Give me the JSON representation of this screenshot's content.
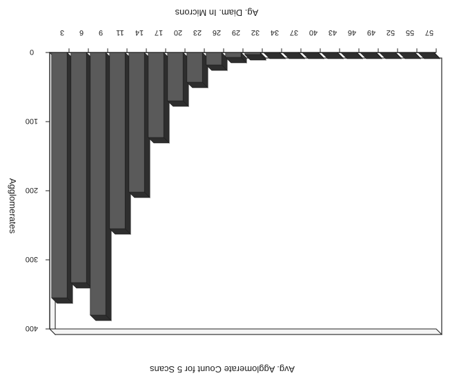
{
  "chart_data": {
    "type": "bar",
    "orientation": "inverted-3d",
    "title": "",
    "top_axis_label": "Ag. Diam. In Microns",
    "xlabel": "Avg. Agglomerate Count for 5 Scans",
    "ylabel": "Agglomerates",
    "categories": [
      "3",
      "6",
      "9",
      "11",
      "14",
      "17",
      "20",
      "23",
      "26",
      "29",
      "32",
      "34",
      "37",
      "40",
      "43",
      "46",
      "49",
      "52",
      "55",
      "57"
    ],
    "values": [
      355,
      333,
      380,
      255,
      202,
      123,
      70,
      43,
      18,
      7,
      3,
      1,
      1,
      1,
      1,
      1,
      1,
      1,
      1,
      1
    ],
    "ylim": [
      0,
      400
    ],
    "yticks": [
      0,
      100,
      200,
      300,
      400
    ],
    "colors": {
      "bar_front": "#5a5a5a",
      "bar_side": "#2e2e2e",
      "bar_top": "#3a3a3a",
      "plot_border": "#222222",
      "floor": "#f4f4f4"
    }
  }
}
